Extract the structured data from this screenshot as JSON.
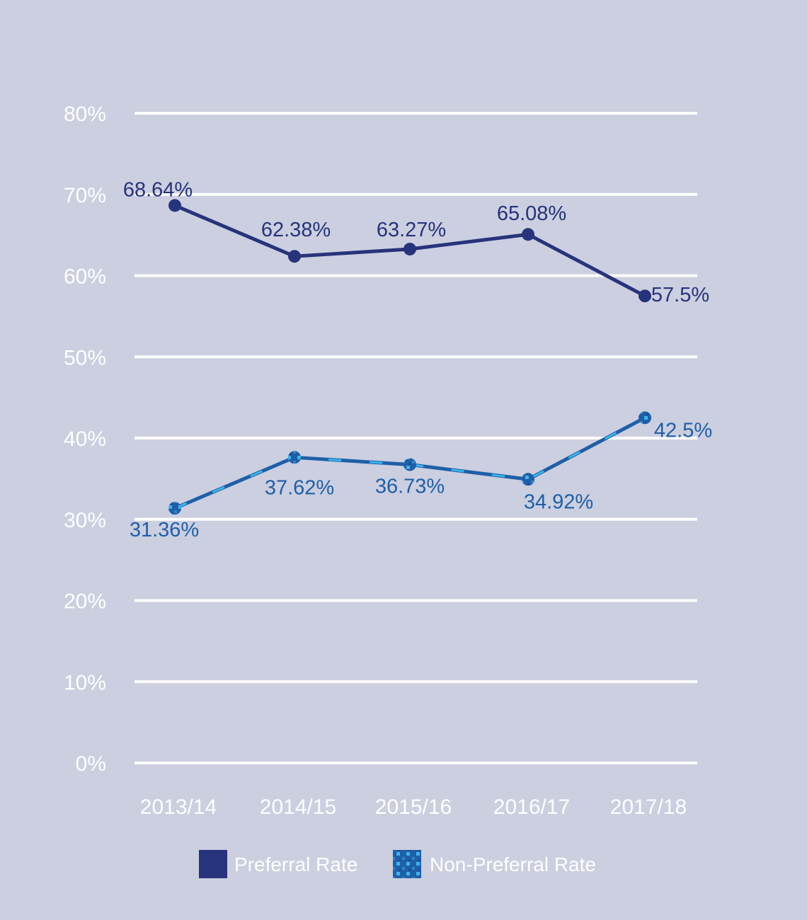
{
  "chart_data": {
    "type": "line",
    "categories": [
      "2013/14",
      "2014/15",
      "2015/16",
      "2016/17",
      "2017/18"
    ],
    "series": [
      {
        "name": "Preferral Rate",
        "values": [
          68.64,
          62.38,
          63.27,
          65.08,
          57.5
        ],
        "labels": [
          "68.64%",
          "62.38%",
          "63.27%",
          "65.08%",
          "57.5%"
        ],
        "color": "#27337a"
      },
      {
        "name": "Non-Preferral Rate",
        "values": [
          31.36,
          37.62,
          36.73,
          34.92,
          42.5
        ],
        "labels": [
          "31.36%",
          "37.62%",
          "36.73%",
          "34.92%",
          "42.5%"
        ],
        "color": "#1f5fa8",
        "accent_color": "#3bb5e8"
      }
    ],
    "y_ticks": [
      "0%",
      "10%",
      "20%",
      "30%",
      "40%",
      "50%",
      "60%",
      "70%",
      "80%"
    ],
    "ylim": [
      0,
      80
    ],
    "grid": true,
    "legend": "bottom",
    "background": "#cbcfe0"
  }
}
